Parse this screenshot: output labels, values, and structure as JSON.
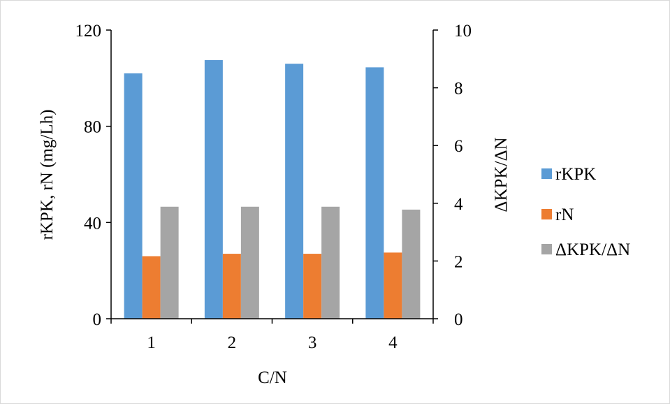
{
  "chart_data": {
    "type": "bar",
    "categories": [
      "1",
      "2",
      "3",
      "4"
    ],
    "xlabel": "C/N",
    "ylabel": "rKPK, rN (mg/Lh)",
    "y2label": "ΔKPK/ΔN",
    "ylim": [
      0,
      120
    ],
    "y2lim": [
      0,
      10
    ],
    "yticks": [
      "0",
      "40",
      "80",
      "120"
    ],
    "y2ticks": [
      "0",
      "2",
      "4",
      "6",
      "8",
      "10"
    ],
    "grid": false,
    "legend_position": "right",
    "series": [
      {
        "name": "rKPK",
        "axis": "left",
        "color": "#5b9bd5",
        "values": [
          102,
          107.5,
          106,
          104.5
        ]
      },
      {
        "name": "rN",
        "axis": "left",
        "color": "#ed7d31",
        "values": [
          26,
          27,
          27,
          27.5
        ]
      },
      {
        "name": "ΔKPK/ΔN",
        "axis": "right",
        "color": "#a5a5a5",
        "values": [
          3.88,
          3.88,
          3.88,
          3.78
        ]
      }
    ]
  }
}
